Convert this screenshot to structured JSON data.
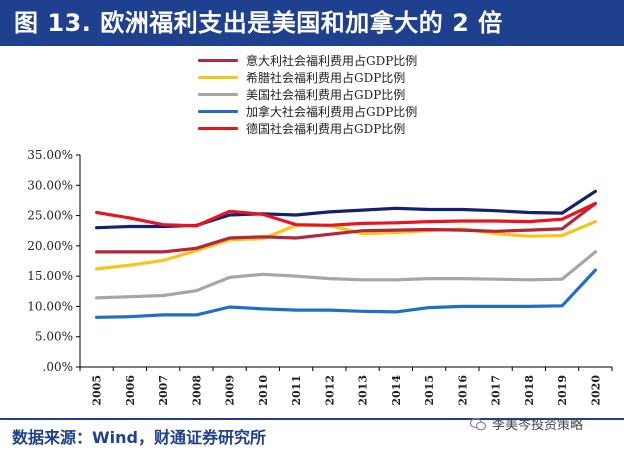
{
  "header": {
    "title": "图 13. 欧洲福利支出是美国和加拿大的 2 倍"
  },
  "footer": {
    "source": "数据来源：Wind，财通证券研究所",
    "watermark": "李美岑投资策略"
  },
  "colors": {
    "title_bg": "#1f3f8f",
    "italy": "#b3263c",
    "greece": "#f5c518",
    "usa": "#a6a6a6",
    "canada": "#1f6fc7",
    "germany": "#e8141e",
    "navy": "#142070"
  },
  "chart_data": {
    "type": "line",
    "title": "欧洲福利支出是美国和加拿大的 2 倍",
    "xlabel": "",
    "ylabel": "",
    "ylim": [
      0,
      35
    ],
    "y_ticks": [
      "35.00%",
      "30.00%",
      "25.00%",
      "20.00%",
      "15.00%",
      "10.00%",
      "5.00%",
      ".00%"
    ],
    "x": [
      "2005",
      "2006",
      "2007",
      "2008",
      "2009",
      "2010",
      "2011",
      "2012",
      "2013",
      "2014",
      "2015",
      "2016",
      "2017",
      "2018",
      "2019",
      "2020"
    ],
    "legend_position": "top-center",
    "series": [
      {
        "name": "意大利社会福利费用占GDP比例",
        "color_key": "italy",
        "in_legend": true,
        "values": [
          19.0,
          19.0,
          19.0,
          19.6,
          21.3,
          21.5,
          21.3,
          21.9,
          22.5,
          22.6,
          22.7,
          22.6,
          22.4,
          22.6,
          22.8,
          27.0
        ]
      },
      {
        "name": "希腊社会福利费用占GDP比例",
        "color_key": "greece",
        "in_legend": true,
        "values": [
          16.2,
          16.8,
          17.6,
          19.2,
          21.0,
          21.2,
          23.4,
          23.4,
          22.0,
          22.2,
          22.5,
          22.8,
          22.0,
          21.6,
          21.7,
          24.0
        ]
      },
      {
        "name": "美国社会福利费用占GDP比例",
        "color_key": "usa",
        "in_legend": true,
        "values": [
          11.4,
          11.6,
          11.8,
          12.6,
          14.8,
          15.3,
          15.0,
          14.6,
          14.4,
          14.4,
          14.6,
          14.6,
          14.5,
          14.4,
          14.5,
          19.0
        ]
      },
      {
        "name": "加拿大社会福利费用占GDP比例",
        "color_key": "canada",
        "in_legend": true,
        "values": [
          8.2,
          8.3,
          8.6,
          8.6,
          9.9,
          9.6,
          9.4,
          9.4,
          9.2,
          9.1,
          9.8,
          10.0,
          10.0,
          10.0,
          10.1,
          16.0
        ]
      },
      {
        "name": "德国社会福利费用占GDP比例",
        "color_key": "germany",
        "in_legend": true,
        "values": [
          25.5,
          24.6,
          23.5,
          23.3,
          25.7,
          25.2,
          23.5,
          23.4,
          23.7,
          23.8,
          24.0,
          24.1,
          24.1,
          24.0,
          24.4,
          27.0
        ]
      },
      {
        "name": "",
        "color_key": "navy",
        "in_legend": false,
        "values": [
          23.0,
          23.2,
          23.2,
          23.4,
          25.1,
          25.3,
          25.1,
          25.6,
          25.9,
          26.2,
          26.0,
          26.0,
          25.8,
          25.5,
          25.4,
          29.0
        ]
      }
    ]
  }
}
